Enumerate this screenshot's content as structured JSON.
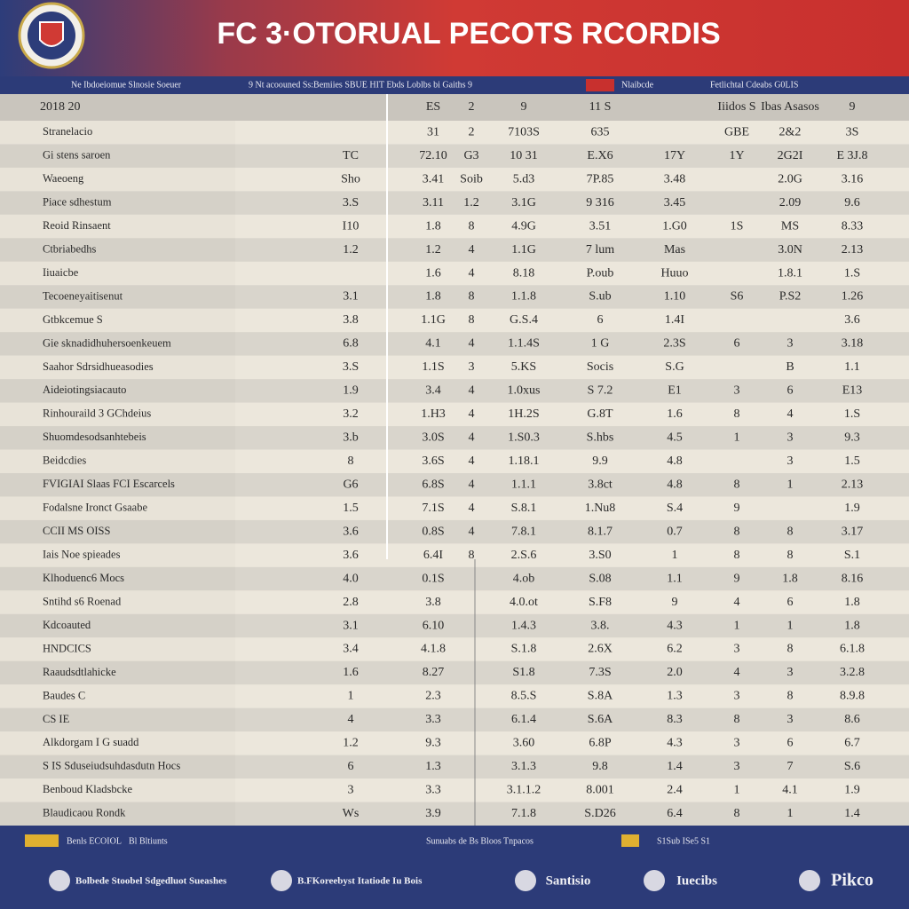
{
  "header": {
    "title": "FC 3·OTORUAL PECOTS RCORDIS",
    "strip": [
      "Ne Ibdoeiomue Slnosie Soeuer",
      "9 Nt acoouned Ss:Bemiies SBUE HIT Ebds Loblbs bi Gaiths 9",
      "Nlaibcde",
      "Fetlichtal Cdeabs G0LIS"
    ]
  },
  "table": {
    "head": [
      "2018 20",
      null,
      "ES",
      "2",
      "9",
      "11 S",
      null,
      "Iiidos S",
      "Ibas Asasos",
      "9"
    ],
    "rows": [
      [
        "Stranelacio",
        null,
        "31",
        "2",
        "7103S",
        "635",
        null,
        "GBE",
        "2&2",
        "3S"
      ],
      [
        "Gi stens saroen",
        "TC",
        "72.10",
        "G3",
        "10 31",
        "E.X6",
        "17Y",
        "1Y",
        "2G2I",
        "E 3J.8"
      ],
      [
        "Waeoeng",
        "Sho",
        "3.41",
        "Soib",
        "5.d3",
        "7P.85",
        "3.48",
        null,
        "2.0G",
        "3.16"
      ],
      [
        "Piace sdhestum",
        "3.S",
        "3.11",
        "1.2",
        "3.1G",
        "9 316",
        "3.45",
        null,
        "2.09",
        "9.6"
      ],
      [
        "Reoid Rinsaent",
        "I10",
        "1.8",
        "8",
        "4.9G",
        "3.51",
        "1.G0",
        "1S",
        "MS",
        "8.33"
      ],
      [
        "Ctbriabedhs",
        "1.2",
        "1.2",
        "4",
        "1.1G",
        "7 lum",
        "Mas",
        null,
        "3.0N",
        "2.13"
      ],
      [
        "Iiuaicbe",
        null,
        "1.6",
        "4",
        "8.18",
        "P.oub",
        "Huuo",
        null,
        "1.8.1",
        "1.S"
      ],
      [
        "Tecoeneyaitisenut",
        "3.1",
        "1.8",
        "8",
        "1.1.8",
        "S.ub",
        "1.10",
        "S6",
        "P.S2",
        "1.26"
      ],
      [
        "Gtbkcemue S",
        "3.8",
        "1.1G",
        "8",
        "G.S.4",
        "6",
        "1.4I",
        null,
        null,
        "3.6"
      ],
      [
        "Gie sknadidhuhersoenkeuem",
        "6.8",
        "4.1",
        "4",
        "1.1.4S",
        "1 G",
        "2.3S",
        "6",
        "3",
        "3.18"
      ],
      [
        "Saahor Sdrsidhueasodies",
        "3.S",
        "1.1S",
        "3",
        "5.KS",
        "Socis",
        "S.G",
        null,
        "B",
        "1.1"
      ],
      [
        "Aideiotingsiacauto",
        "1.9",
        "3.4",
        "4",
        "1.0xus",
        "S 7.2",
        "E1",
        "3",
        "6",
        "E13"
      ],
      [
        "Rinhouraild 3 GChdeius",
        "3.2",
        "1.H3",
        "4",
        "1H.2S",
        "G.8T",
        "1.6",
        "8",
        "4",
        "1.S"
      ],
      [
        "Shuomdesodsanhtebeis",
        "3.b",
        "3.0S",
        "4",
        "1.S0.3",
        "S.hbs",
        "4.5",
        "1",
        "3",
        "9.3"
      ],
      [
        "Beidcdies",
        "8",
        "3.6S",
        "4",
        "1.18.1",
        "9.9",
        "4.8",
        null,
        "3",
        "1.5"
      ],
      [
        "FVIGIAI Slaas FCI Escarcels",
        "G6",
        "6.8S",
        "4",
        "1.1.1",
        "3.8ct",
        "4.8",
        "8",
        "1",
        "2.13"
      ],
      [
        "Fodalsne Ironct Gsaabe",
        "1.5",
        "7.1S",
        "4",
        "S.8.1",
        "1.Nu8",
        "S.4",
        "9",
        null,
        "1.9"
      ],
      [
        "CCII MS OISS",
        "3.6",
        "0.8S",
        "4",
        "7.8.1",
        "8.1.7",
        "0.7",
        "8",
        "8",
        "3.17"
      ],
      [
        "Iais Noe spieades",
        "3.6",
        "6.4I",
        "8",
        "2.S.6",
        "3.S0",
        "1",
        "8",
        "8",
        "S.1"
      ],
      [
        "Klhoduenc6 Mocs",
        "4.0",
        "0.1S",
        null,
        "4.ob",
        "S.08",
        "1.1",
        "9",
        "1.8",
        "8.16"
      ],
      [
        "Sntihd s6 Roenad",
        "2.8",
        "3.8",
        null,
        "4.0.ot",
        "S.F8",
        "9",
        "4",
        "6",
        "1.8"
      ],
      [
        "Kdcoauted",
        "3.1",
        "6.10",
        null,
        "1.4.3",
        "3.8.",
        "4.3",
        "1",
        "1",
        "1.8"
      ],
      [
        "HNDCICS",
        "3.4",
        "4.1.8",
        null,
        "S.1.8",
        "2.6X",
        "6.2",
        "3",
        "8",
        "6.1.8"
      ],
      [
        "Raaudsdtlahicke",
        "1.6",
        "8.27",
        null,
        "S1.8",
        "7.3S",
        "2.0",
        "4",
        "3",
        "3.2.8"
      ],
      [
        "Baudes C",
        "1",
        "2.3",
        null,
        "8.5.S",
        "S.8A",
        "1.3",
        "3",
        "8",
        "8.9.8"
      ],
      [
        "CS IE",
        "4",
        "3.3",
        null,
        "6.1.4",
        "S.6A",
        "8.3",
        "8",
        "3",
        "8.6"
      ],
      [
        "Alkdorgam I G suadd",
        "1.2",
        "9.3",
        null,
        "3.60",
        "6.8P",
        "4.3",
        "3",
        "6",
        "6.7"
      ],
      [
        "S IS Sduseiudsuhdasdutn Hocs",
        "6",
        "1.3",
        null,
        "3.1.3",
        "9.8",
        "1.4",
        "3",
        "7",
        "S.6"
      ],
      [
        "Benboud Kladsbcke",
        "3",
        "3.3",
        null,
        "3.1.1.2",
        "8.001",
        "2.4",
        "1",
        "4.1",
        "1.9"
      ],
      [
        "Blaudicaou Rondk",
        "Ws",
        "3.9",
        null,
        "7.1.8",
        "S.D26",
        "6.4",
        "8",
        "1",
        "1.4"
      ]
    ]
  },
  "footer": {
    "strip": [
      "Benls ECOIOL",
      "Bl Bltiunts",
      "Sunuabs de Bs Bloos Tnpacos",
      "S1Sub ISe5 S1"
    ],
    "items": [
      "Bolbede Stoobel Sdgedluot Sueashes",
      "B.FKoreebyst Itatiode Iu Bois",
      "Santisio",
      "Iuecibs",
      "Pikco"
    ]
  }
}
